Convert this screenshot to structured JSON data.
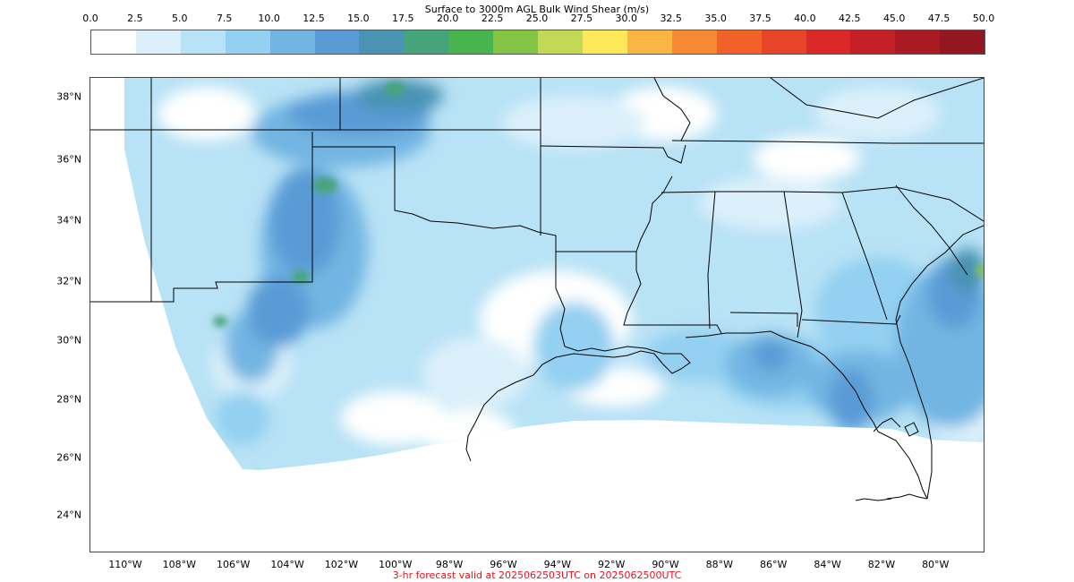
{
  "colorbar": {
    "title": "Surface to 3000m AGL Bulk Wind Shear (m/s)",
    "ticks": [
      "0.0",
      "2.5",
      "5.0",
      "7.5",
      "10.0",
      "12.5",
      "15.0",
      "17.5",
      "20.0",
      "22.5",
      "25.0",
      "27.5",
      "30.0",
      "32.5",
      "35.0",
      "37.5",
      "40.0",
      "42.5",
      "45.0",
      "47.5",
      "50.0"
    ],
    "colors": [
      "#ffffff",
      "#dcf0fb",
      "#b8e2f5",
      "#93d0f1",
      "#72b5e2",
      "#5a9bd6",
      "#4a93b3",
      "#46a47a",
      "#47b44d",
      "#83c445",
      "#c3d855",
      "#fce858",
      "#fbb545",
      "#f88a34",
      "#f26128",
      "#e84428",
      "#dc2827",
      "#c41e26",
      "#a91a22",
      "#931620"
    ]
  },
  "map": {
    "lat_labels": [
      "38°N",
      "36°N",
      "34°N",
      "32°N",
      "30°N",
      "28°N",
      "26°N",
      "24°N"
    ],
    "lon_labels": [
      "110°W",
      "108°W",
      "106°W",
      "104°W",
      "102°W",
      "100°W",
      "98°W",
      "96°W",
      "94°W",
      "92°W",
      "90°W",
      "88°W",
      "86°W",
      "84°W",
      "82°W",
      "80°W"
    ]
  },
  "footer": "3-hr forecast valid at 2025062503UTC on 2025062500UTC"
}
